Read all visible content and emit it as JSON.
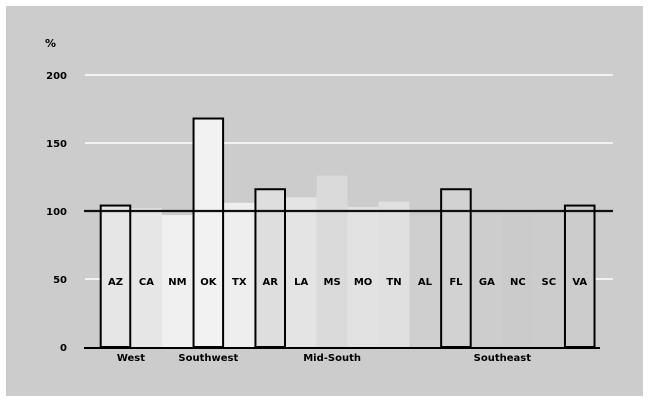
{
  "chart_data": {
    "type": "bar",
    "title": "",
    "xlabel": "",
    "ylabel": "%",
    "ylim": [
      0,
      200
    ],
    "yticks": [
      0,
      50,
      100,
      150,
      200
    ],
    "reference_line": 100,
    "grid": true,
    "legend": "none",
    "categories": [
      "AZ",
      "CA",
      "NM",
      "OK",
      "TX",
      "AR",
      "LA",
      "MS",
      "MO",
      "TN",
      "AL",
      "FL",
      "GA",
      "NC",
      "SC",
      "VA"
    ],
    "values": [
      104,
      102,
      97,
      168,
      106,
      116,
      110,
      126,
      103,
      107,
      96,
      116,
      97,
      98,
      101,
      104
    ],
    "highlighted": [
      "AZ",
      "OK",
      "AR",
      "FL",
      "VA"
    ],
    "groups": [
      {
        "label": "West",
        "members": [
          "AZ",
          "CA"
        ]
      },
      {
        "label": "Southwest",
        "members": [
          "NM",
          "OK",
          "TX"
        ]
      },
      {
        "label": "Mid-South",
        "members": [
          "AR",
          "LA",
          "MS",
          "MO",
          "TN"
        ]
      },
      {
        "label": "Southeast",
        "members": [
          "AL",
          "FL",
          "GA",
          "NC",
          "SC",
          "VA"
        ]
      }
    ],
    "colors": {
      "page_background": "#ffffff",
      "plot_background": "#cccccc",
      "grid": "#ffffff",
      "axis": "#000000",
      "reference_line": "#111111",
      "text": "#000000",
      "bar_fills": [
        "#e6e6e6",
        "#e6e6e6",
        "#f0f0f0",
        "#f2f2f2",
        "#eeeeee",
        "#dedede",
        "#e4e4e4",
        "#dadada",
        "#e2e2e2",
        "#e0e0e0",
        "#cfcfcf",
        "#d2d2d2",
        "#cdcdcd",
        "#cbcbcb",
        "#cccccc",
        "#cccccc"
      ],
      "highlight_outline": "#000000"
    }
  }
}
